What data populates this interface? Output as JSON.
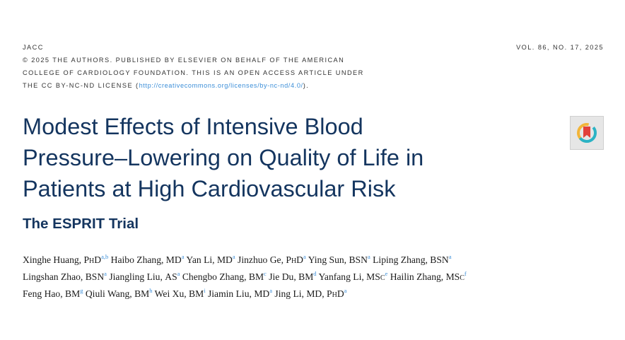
{
  "journal": {
    "name": "JACC",
    "copyright_line1": "© 2025 THE AUTHORS. PUBLISHED BY ELSEVIER ON BEHALF OF THE AMERICAN",
    "copyright_line2": "COLLEGE OF CARDIOLOGY FOUNDATION. THIS IS AN OPEN ACCESS ARTICLE UNDER",
    "copyright_line3_prefix": "THE CC BY-NC-ND LICENSE (",
    "license_url": "http://creativecommons.org/licenses/by-nc-nd/4.0/",
    "copyright_line3_suffix": ").",
    "volume": "VOL. 86, NO. 17, 2025"
  },
  "article": {
    "title_lines": [
      "Modest Effects of Intensive Blood",
      "Pressure–Lowering on Quality of Life in",
      "Patients at High Cardiovascular Risk"
    ],
    "subtitle": "The ESPRIT Trial"
  },
  "badge": {
    "icon": "check-for-updates-icon"
  },
  "colors": {
    "title": "#14355f",
    "link": "#3b8ed8",
    "text": "#1a1a1a"
  },
  "authors": {
    "lines": [
      [
        {
          "name": "Xinghe Huang",
          "degree": "PhD",
          "aff": "a,b"
        },
        {
          "name": "Haibo Zhang",
          "degree": "MD",
          "aff": "a"
        },
        {
          "name": "Yan Li",
          "degree": "MD",
          "aff": "a"
        },
        {
          "name": "Jinzhuo Ge",
          "degree": "PhD",
          "aff": "a"
        },
        {
          "name": "Ying Sun",
          "degree": "BSN",
          "aff": "a"
        },
        {
          "name": "Liping Zhang",
          "degree": "BSN",
          "aff": "a"
        }
      ],
      [
        {
          "name": "Lingshan Zhao",
          "degree": "BSN",
          "aff": "a"
        },
        {
          "name": "Jiangling Liu",
          "degree": "AS",
          "aff": "a"
        },
        {
          "name": "Chengbo Zhang",
          "degree": "BM",
          "aff": "c"
        },
        {
          "name": "Jie Du",
          "degree": "BM",
          "aff": "d"
        },
        {
          "name": "Yanfang Li",
          "degree": "MSc",
          "aff": "e"
        },
        {
          "name": "Hailin Zhang",
          "degree": "MSc",
          "aff": "f"
        }
      ],
      [
        {
          "name": "Feng Hao",
          "degree": "BM",
          "aff": "g"
        },
        {
          "name": "Qiuli Wang",
          "degree": "BM",
          "aff": "h"
        },
        {
          "name": "Wei Xu",
          "degree": "BM",
          "aff": "i"
        },
        {
          "name": "Jiamin Liu",
          "degree": "MD",
          "aff": "a"
        },
        {
          "name": "Jing Li",
          "degree": "MD, PhD",
          "aff": "a"
        }
      ]
    ]
  }
}
